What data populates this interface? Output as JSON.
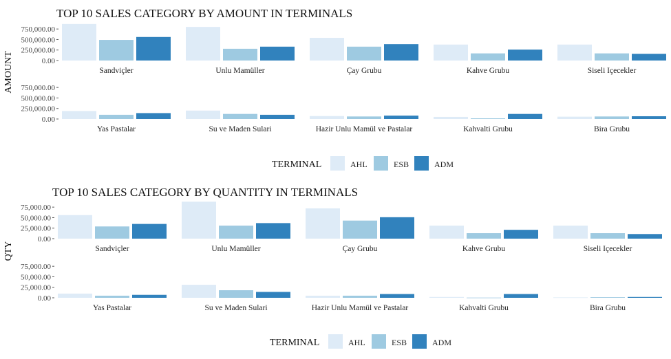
{
  "chart_data": [
    {
      "type": "bar",
      "title": "TOP 10 SALES CATEGORY BY AMOUNT IN TERMINALS",
      "ylabel": "AMOUNT",
      "legend_title": "TERMINAL",
      "legend_position": "bottom",
      "ylim": [
        0,
        900000
      ],
      "yticks": [
        0,
        250000,
        500000,
        750000
      ],
      "ytick_labels": [
        "0.00",
        "250,000.00",
        "500,000.00",
        "750,000.00"
      ],
      "series_names": [
        "AHL",
        "ESB",
        "ADM"
      ],
      "colors": [
        "#deebf7",
        "#9ecae1",
        "#3182bd"
      ],
      "categories": [
        "Sandviçler",
        "Unlu Mamüller",
        "Çay Grubu",
        "Kahve Grubu",
        "Siseli Içecekler",
        "Yas Pastalar",
        "Su ve Maden Sulari",
        "Hazir Unlu Mamül ve Pastalar",
        "Kahvalti Grubu",
        "Bira Grubu"
      ],
      "values": [
        [
          870000,
          490000,
          560000
        ],
        [
          800000,
          280000,
          330000
        ],
        [
          540000,
          330000,
          390000
        ],
        [
          380000,
          170000,
          260000
        ],
        [
          380000,
          170000,
          160000
        ],
        [
          190000,
          100000,
          140000
        ],
        [
          200000,
          120000,
          100000
        ],
        [
          70000,
          60000,
          80000
        ],
        [
          50000,
          15000,
          120000
        ],
        [
          55000,
          60000,
          65000
        ]
      ]
    },
    {
      "type": "bar",
      "title": "TOP 10 SALES CATEGORY BY QUANTITY IN TERMINALS",
      "ylabel": "QTY",
      "legend_title": "TERMINAL",
      "legend_position": "bottom",
      "ylim": [
        0,
        90000
      ],
      "yticks": [
        0,
        25000,
        50000,
        75000
      ],
      "ytick_labels": [
        "0.00",
        "25,000.00",
        "50,000.00",
        "75,000.00"
      ],
      "series_names": [
        "AHL",
        "ESB",
        "ADM"
      ],
      "colors": [
        "#deebf7",
        "#9ecae1",
        "#3182bd"
      ],
      "categories": [
        "Sandviçler",
        "Unlu Mamüller",
        "Çay Grubu",
        "Kahve Grubu",
        "Siseli Içecekler",
        "Yas Pastalar",
        "Su ve Maden Sulari",
        "Hazir Unlu Mamül ve Pastalar",
        "Kahvalti Grubu",
        "Bira Grubu"
      ],
      "values": [
        [
          56000,
          29000,
          35000
        ],
        [
          88000,
          31000,
          37000
        ],
        [
          72000,
          43000,
          51000
        ],
        [
          31000,
          13000,
          21000
        ],
        [
          31000,
          13000,
          11000
        ],
        [
          10000,
          5000,
          7000
        ],
        [
          31000,
          18000,
          14000
        ],
        [
          5000,
          5000,
          9000
        ],
        [
          2000,
          500,
          9000
        ],
        [
          1000,
          1500,
          2000
        ]
      ]
    }
  ]
}
